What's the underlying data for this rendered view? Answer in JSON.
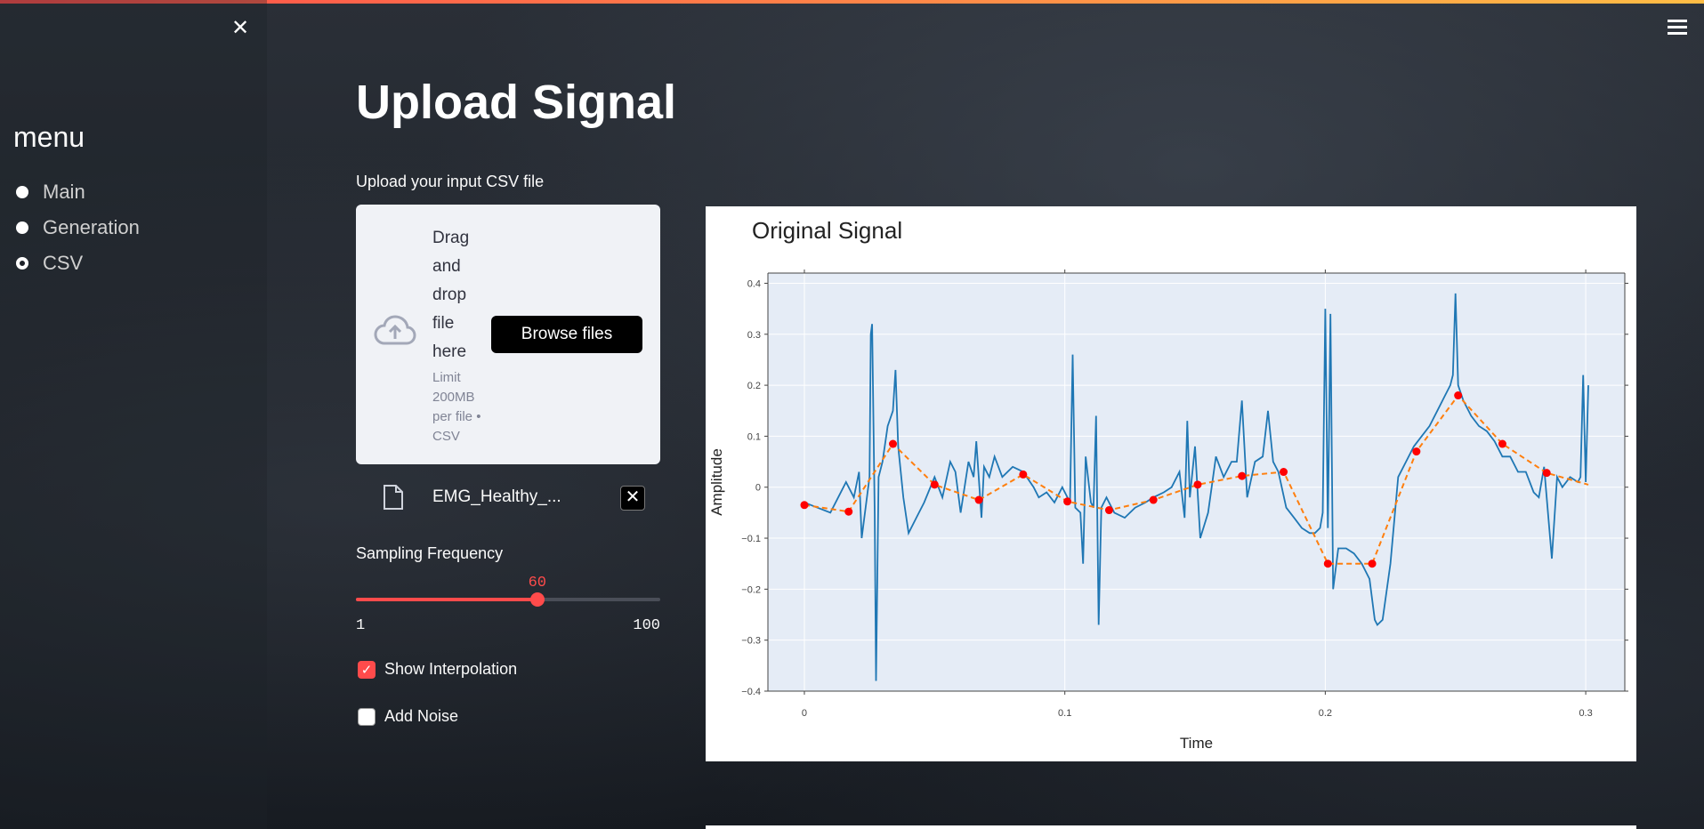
{
  "sidebar": {
    "title": "menu",
    "items": [
      {
        "label": "Main",
        "selected": false
      },
      {
        "label": "Generation",
        "selected": false
      },
      {
        "label": "CSV",
        "selected": true
      }
    ]
  },
  "header": {
    "title": "Upload Signal"
  },
  "uploader": {
    "label": "Upload your input CSV file",
    "drag_text": "Drag and drop file here",
    "limit_text": "Limit 200MB per file • CSV",
    "browse_label": "Browse files",
    "file_name": "EMG_Healthy_..."
  },
  "sampling": {
    "label": "Sampling Frequency",
    "value": 60,
    "value_text": "60",
    "min": 1,
    "max": 100,
    "min_text": "1",
    "max_text": "100"
  },
  "options": {
    "show_interpolation": {
      "label": "Show Interpolation",
      "checked": true
    },
    "add_noise": {
      "label": "Add Noise",
      "checked": false
    }
  },
  "colors": {
    "accent": "#ff4b4b",
    "signal": "#1f77b4",
    "interpolation": "#ff7f0e",
    "samples": "#ff0000"
  },
  "chart_data": {
    "type": "line",
    "title": "Original Signal",
    "xlabel": "Time",
    "ylabel": "Amplitude",
    "xlim": [
      -0.014,
      0.315
    ],
    "ylim": [
      -0.4,
      0.42
    ],
    "xticks": [
      0,
      0.1,
      0.2,
      0.3
    ],
    "xtick_labels": [
      "0",
      "0.1",
      "0.2",
      "0.3"
    ],
    "yticks": [
      -0.4,
      -0.3,
      -0.2,
      -0.1,
      0,
      0.1,
      0.2,
      0.3,
      0.4
    ],
    "ytick_labels": [
      "−0.4",
      "−0.3",
      "−0.2",
      "−0.1",
      "0",
      "0.1",
      "0.2",
      "0.3",
      "0.4"
    ],
    "grid": true,
    "series": [
      {
        "kind": "signal",
        "x": [
          0,
          0.005,
          0.01,
          0.013,
          0.016,
          0.019,
          0.021,
          0.022,
          0.025,
          0.0255,
          0.026,
          0.027,
          0.0275,
          0.0285,
          0.03,
          0.032,
          0.034,
          0.035,
          0.036,
          0.038,
          0.04,
          0.043,
          0.046,
          0.05,
          0.053,
          0.056,
          0.058,
          0.06,
          0.063,
          0.065,
          0.066,
          0.068,
          0.069,
          0.071,
          0.073,
          0.076,
          0.08,
          0.084,
          0.088,
          0.09,
          0.093,
          0.096,
          0.099,
          0.101,
          0.102,
          0.103,
          0.104,
          0.106,
          0.107,
          0.108,
          0.11,
          0.111,
          0.112,
          0.113,
          0.114,
          0.116,
          0.119,
          0.123,
          0.127,
          0.131,
          0.134,
          0.138,
          0.141,
          0.144,
          0.146,
          0.147,
          0.148,
          0.15,
          0.152,
          0.155,
          0.158,
          0.161,
          0.164,
          0.166,
          0.168,
          0.17,
          0.173,
          0.176,
          0.178,
          0.18,
          0.182,
          0.185,
          0.188,
          0.191,
          0.194,
          0.196,
          0.198,
          0.199,
          0.2,
          0.201,
          0.202,
          0.203,
          0.205,
          0.208,
          0.211,
          0.214,
          0.217,
          0.219,
          0.22,
          0.222,
          0.225,
          0.228,
          0.231,
          0.234,
          0.237,
          0.24,
          0.243,
          0.246,
          0.248,
          0.249,
          0.25,
          0.251,
          0.253,
          0.256,
          0.259,
          0.262,
          0.265,
          0.268,
          0.271,
          0.274,
          0.277,
          0.28,
          0.282,
          0.284,
          0.287,
          0.289,
          0.291,
          0.294,
          0.297,
          0.298,
          0.299,
          0.3,
          0.301
        ],
        "y": [
          -0.03,
          -0.04,
          -0.05,
          -0.02,
          0.01,
          -0.02,
          0.03,
          -0.1,
          0.02,
          0.3,
          0.32,
          -0.05,
          -0.38,
          0.02,
          0.05,
          0.12,
          0.15,
          0.23,
          0.08,
          -0.02,
          -0.09,
          -0.06,
          -0.03,
          0.02,
          -0.02,
          0.05,
          0.03,
          -0.05,
          0.05,
          0.02,
          0.09,
          -0.06,
          0.04,
          0.02,
          0.06,
          0.02,
          0.04,
          0.03,
          0.0,
          -0.02,
          -0.01,
          -0.03,
          0.0,
          -0.02,
          -0.03,
          0.26,
          -0.04,
          -0.05,
          -0.15,
          0.06,
          -0.03,
          -0.04,
          0.14,
          -0.27,
          -0.04,
          -0.02,
          -0.05,
          -0.06,
          -0.04,
          -0.03,
          -0.02,
          -0.01,
          0.0,
          0.03,
          -0.06,
          0.13,
          -0.02,
          0.08,
          -0.1,
          -0.05,
          0.06,
          0.02,
          0.05,
          0.05,
          0.17,
          -0.02,
          0.05,
          0.06,
          0.15,
          0.05,
          0.03,
          -0.04,
          -0.06,
          -0.08,
          -0.09,
          -0.09,
          -0.08,
          -0.05,
          0.35,
          -0.08,
          0.34,
          -0.2,
          -0.12,
          -0.12,
          -0.13,
          -0.15,
          -0.18,
          -0.26,
          -0.27,
          -0.26,
          -0.15,
          0.02,
          0.05,
          0.08,
          0.1,
          0.12,
          0.15,
          0.18,
          0.2,
          0.22,
          0.38,
          0.2,
          0.17,
          0.14,
          0.12,
          0.11,
          0.09,
          0.06,
          0.06,
          0.03,
          0.03,
          -0.01,
          -0.02,
          0.04,
          -0.14,
          0.02,
          0.0,
          0.02,
          0.01,
          0.02,
          0.22,
          0.01,
          0.2
        ],
        "color": "#1f77b4"
      },
      {
        "kind": "interpolation",
        "x": [
          0,
          0.017,
          0.034,
          0.05,
          0.067,
          0.084,
          0.101,
          0.117,
          0.134,
          0.151,
          0.168,
          0.184,
          0.201,
          0.218,
          0.235,
          0.251,
          0.268,
          0.285,
          0.301
        ],
        "y": [
          -0.035,
          -0.048,
          0.085,
          0.005,
          -0.025,
          0.025,
          -0.028,
          -0.045,
          -0.025,
          0.005,
          0.022,
          0.03,
          -0.15,
          -0.15,
          0.07,
          0.18,
          0.085,
          0.028,
          0.005
        ],
        "color": "#ff7f0e",
        "dash": true
      },
      {
        "kind": "samples",
        "x": [
          0,
          0.017,
          0.034,
          0.05,
          0.067,
          0.084,
          0.101,
          0.117,
          0.134,
          0.151,
          0.168,
          0.184,
          0.201,
          0.218,
          0.235,
          0.251,
          0.268,
          0.285
        ],
        "y": [
          -0.035,
          -0.048,
          0.085,
          0.005,
          -0.025,
          0.025,
          -0.028,
          -0.045,
          -0.025,
          0.005,
          0.022,
          0.03,
          -0.15,
          -0.15,
          0.07,
          0.18,
          0.085,
          0.028
        ],
        "color": "#ff0000"
      }
    ]
  }
}
